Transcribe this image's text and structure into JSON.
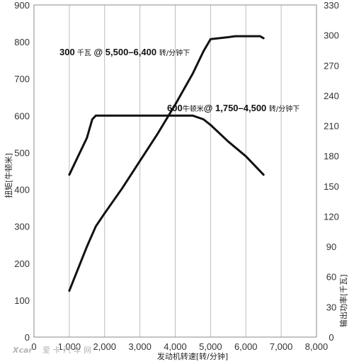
{
  "chart_data": {
    "type": "line",
    "x_axis": {
      "label": "发动机转速[转/分钟]",
      "range": [
        0,
        8000
      ],
      "ticks": [
        "0",
        "1,000",
        "2,000",
        "3,000",
        "4,000",
        "5,000",
        "6,000",
        "7,000",
        "8,000"
      ]
    },
    "y_left": {
      "label": "扭矩[牛顿米]",
      "range": [
        0,
        900
      ],
      "ticks": [
        "0",
        "100",
        "200",
        "300",
        "400",
        "500",
        "600",
        "700",
        "800",
        "900"
      ]
    },
    "y_right": {
      "label": "输出功率[千瓦]",
      "range": [
        0,
        330
      ],
      "ticks": [
        "0",
        "30",
        "60",
        "90",
        "120",
        "150",
        "180",
        "210",
        "240",
        "270",
        "300",
        "330"
      ]
    },
    "grid": "vertical",
    "series": [
      {
        "axis": "left",
        "points": [
          [
            1000,
            440
          ],
          [
            1250,
            490
          ],
          [
            1500,
            540
          ],
          [
            1650,
            590
          ],
          [
            1750,
            600
          ],
          [
            2000,
            600
          ],
          [
            3000,
            600
          ],
          [
            4000,
            600
          ],
          [
            4500,
            600
          ],
          [
            4800,
            590
          ],
          [
            5000,
            575
          ],
          [
            5500,
            530
          ],
          [
            6000,
            490
          ],
          [
            6500,
            440
          ]
        ]
      },
      {
        "axis": "right",
        "points": [
          [
            1000,
            46
          ],
          [
            1250,
            68
          ],
          [
            1500,
            90
          ],
          [
            1750,
            110
          ],
          [
            2000,
            123
          ],
          [
            2500,
            148
          ],
          [
            3000,
            175
          ],
          [
            3500,
            202
          ],
          [
            4000,
            231
          ],
          [
            4500,
            262
          ],
          [
            4800,
            284
          ],
          [
            5000,
            296
          ],
          [
            5500,
            298
          ],
          [
            5700,
            299
          ],
          [
            6000,
            299
          ],
          [
            6400,
            299
          ],
          [
            6500,
            297
          ]
        ]
      }
    ],
    "annotations": [
      {
        "value": "300",
        "unit1": " 千瓦",
        "spec": " @ 5,500–6,400 ",
        "unit2": "转/分钟下"
      },
      {
        "value": "600",
        "unit1": "牛顿米",
        "spec": "@ 1,750–4,500 ",
        "unit2": "转/分钟下"
      }
    ]
  },
  "watermark": {
    "logo": "Xcar",
    "text": "爱 卡 汽 车 网"
  }
}
